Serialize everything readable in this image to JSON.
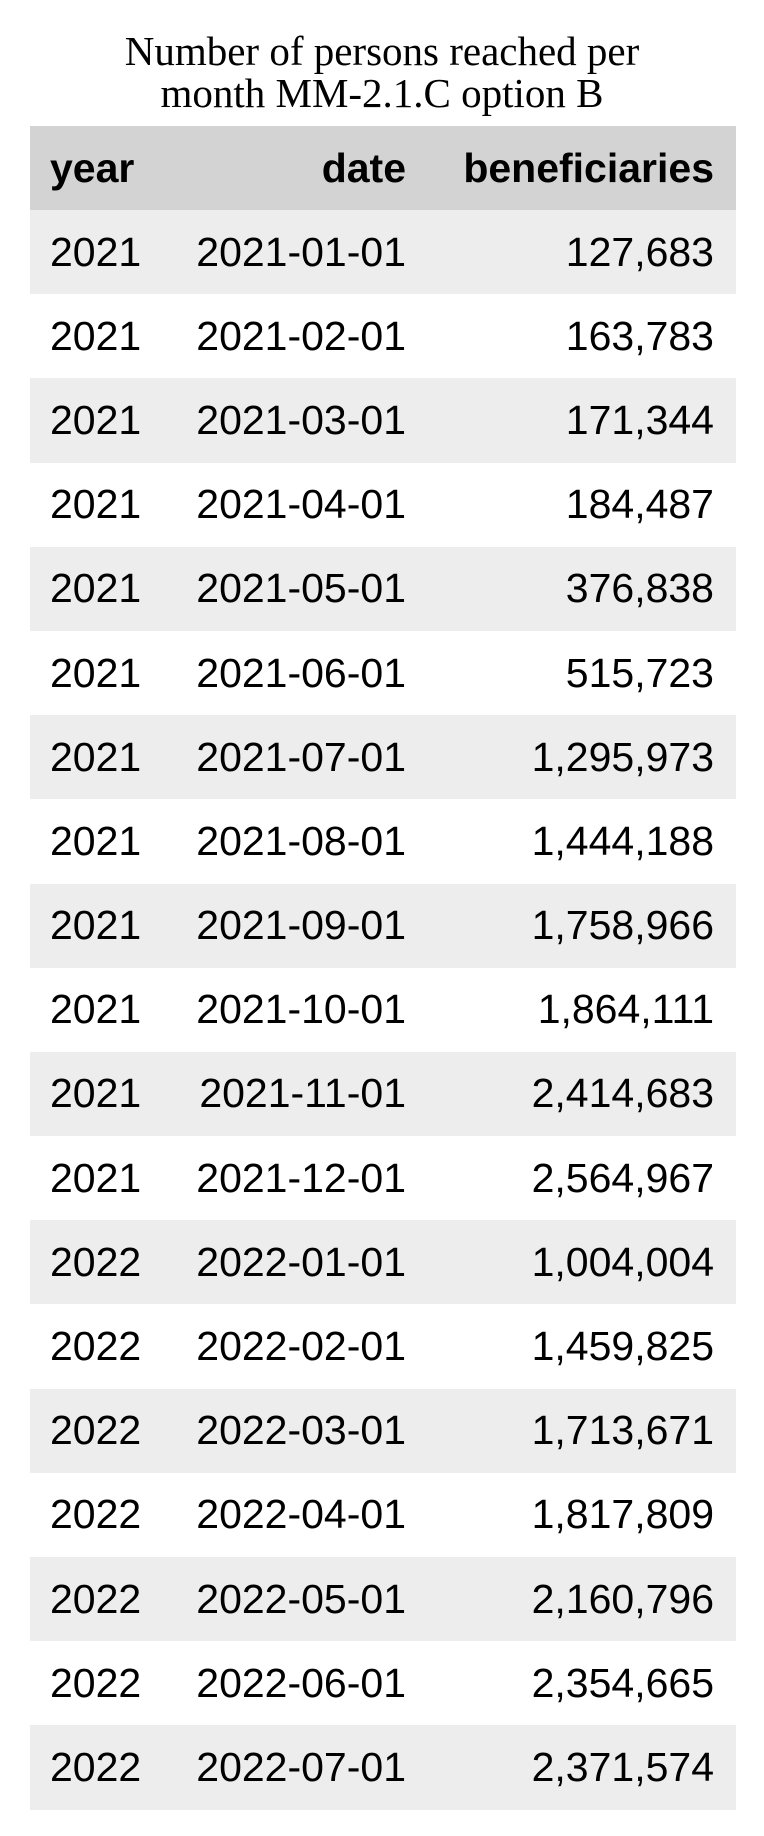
{
  "title_lines": [
    "Number of persons reached per",
    "month MM-2.1.C option B"
  ],
  "chart_data": {
    "type": "table",
    "title": "Number of persons reached per month MM-2.1.C option B",
    "columns": [
      "year",
      "date",
      "beneficiaries"
    ],
    "rows": [
      [
        "2021",
        "2021-01-01",
        "127,683"
      ],
      [
        "2021",
        "2021-02-01",
        "163,783"
      ],
      [
        "2021",
        "2021-03-01",
        "171,344"
      ],
      [
        "2021",
        "2021-04-01",
        "184,487"
      ],
      [
        "2021",
        "2021-05-01",
        "376,838"
      ],
      [
        "2021",
        "2021-06-01",
        "515,723"
      ],
      [
        "2021",
        "2021-07-01",
        "1,295,973"
      ],
      [
        "2021",
        "2021-08-01",
        "1,444,188"
      ],
      [
        "2021",
        "2021-09-01",
        "1,758,966"
      ],
      [
        "2021",
        "2021-10-01",
        "1,864,111"
      ],
      [
        "2021",
        "2021-11-01",
        "2,414,683"
      ],
      [
        "2021",
        "2021-12-01",
        "2,564,967"
      ],
      [
        "2022",
        "2022-01-01",
        "1,004,004"
      ],
      [
        "2022",
        "2022-02-01",
        "1,459,825"
      ],
      [
        "2022",
        "2022-03-01",
        "1,713,671"
      ],
      [
        "2022",
        "2022-04-01",
        "1,817,809"
      ],
      [
        "2022",
        "2022-05-01",
        "2,160,796"
      ],
      [
        "2022",
        "2022-06-01",
        "2,354,665"
      ],
      [
        "2022",
        "2022-07-01",
        "2,371,574"
      ]
    ]
  },
  "colors": {
    "header_bg": "#d3d3d3",
    "stripe_bg": "#ededed",
    "row_bg": "#ffffff",
    "text": "#000000"
  }
}
